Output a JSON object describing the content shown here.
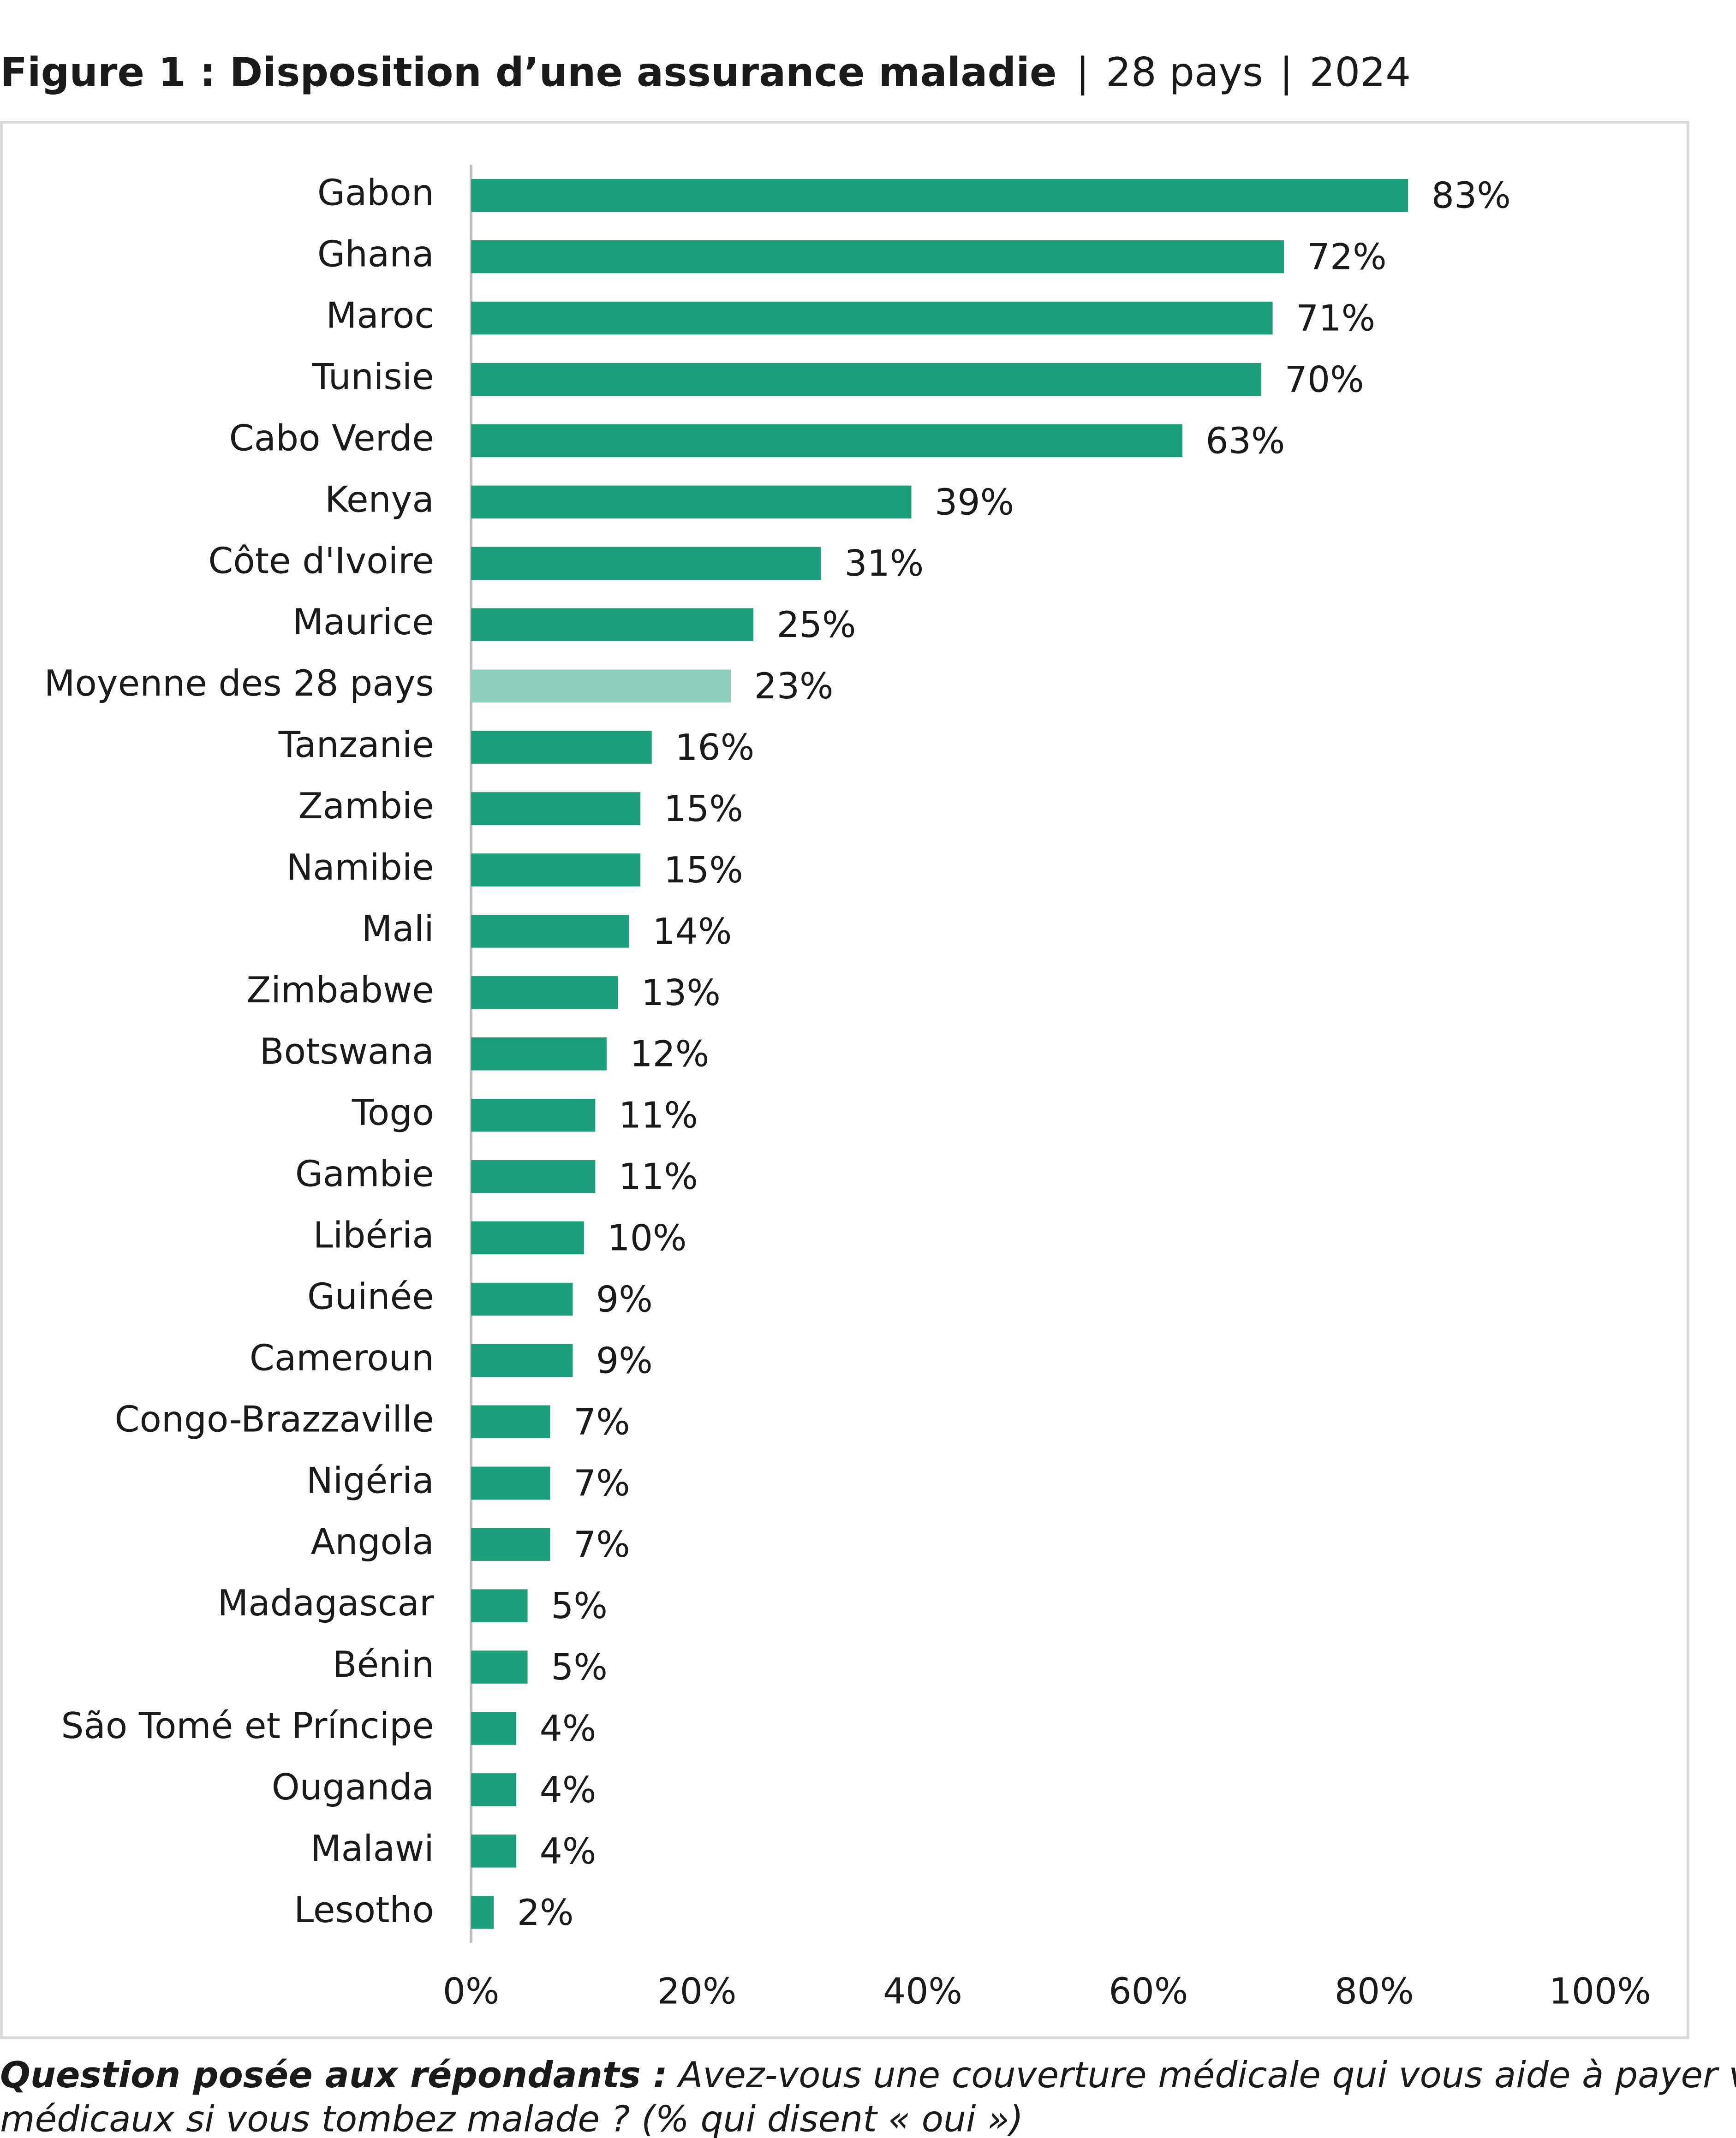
{
  "chart_data": {
    "type": "barh",
    "title": "Figure 1 : Disposition d’une assurance maladie",
    "subtitle": [
      "28 pays",
      "2024"
    ],
    "categories": [
      "Gabon",
      "Ghana",
      "Maroc",
      "Tunisie",
      "Cabo Verde",
      "Kenya",
      "Côte d'Ivoire",
      "Maurice",
      "Moyenne des 28 pays",
      "Tanzanie",
      "Zambie",
      "Namibie",
      "Mali",
      "Zimbabwe",
      "Botswana",
      "Togo",
      "Gambie",
      "Libéria",
      "Guinée",
      "Cameroun",
      "Congo-Brazzaville",
      "Nigéria",
      "Angola",
      "Madagascar",
      "Bénin",
      "São Tomé et Príncipe",
      "Ouganda",
      "Malawi",
      "Lesotho"
    ],
    "values": [
      83,
      72,
      71,
      70,
      63,
      39,
      31,
      25,
      23,
      16,
      15,
      15,
      14,
      13,
      12,
      11,
      11,
      10,
      9,
      9,
      7,
      7,
      7,
      5,
      5,
      4,
      4,
      4,
      2
    ],
    "value_labels": [
      "83%",
      "72%",
      "71%",
      "70%",
      "63%",
      "39%",
      "31%",
      "25%",
      "23%",
      "16%",
      "15%",
      "15%",
      "14%",
      "13%",
      "12%",
      "11%",
      "11%",
      "10%",
      "9%",
      "9%",
      "7%",
      "7%",
      "7%",
      "5%",
      "5%",
      "4%",
      "4%",
      "4%",
      "2%"
    ],
    "colors": [
      "#1c9f7a",
      "#1c9f7a",
      "#1c9f7a",
      "#1c9f7a",
      "#1c9f7a",
      "#1c9f7a",
      "#1c9f7a",
      "#1c9f7a",
      "#8fcfbd",
      "#1c9f7a",
      "#1c9f7a",
      "#1c9f7a",
      "#1c9f7a",
      "#1c9f7a",
      "#1c9f7a",
      "#1c9f7a",
      "#1c9f7a",
      "#1c9f7a",
      "#1c9f7a",
      "#1c9f7a",
      "#1c9f7a",
      "#1c9f7a",
      "#1c9f7a",
      "#1c9f7a",
      "#1c9f7a",
      "#1c9f7a",
      "#1c9f7a",
      "#1c9f7a",
      "#1c9f7a"
    ],
    "xlim": [
      0,
      100
    ],
    "xticks": [
      {
        "value": 0,
        "label": "0%"
      },
      {
        "value": 20,
        "label": "20%"
      },
      {
        "value": 40,
        "label": "40%"
      },
      {
        "value": 60,
        "label": "60%"
      },
      {
        "value": 80,
        "label": "80%"
      },
      {
        "value": 100,
        "label": "100%"
      }
    ],
    "grid": false,
    "note_label": "Question posée aux répondants :",
    "note_lines": [
      "Avez-vous une couverture médicale qui vous aide à payer vos frais",
      "médicaux si vous tombez malade ? (% qui disent « oui »)"
    ]
  }
}
